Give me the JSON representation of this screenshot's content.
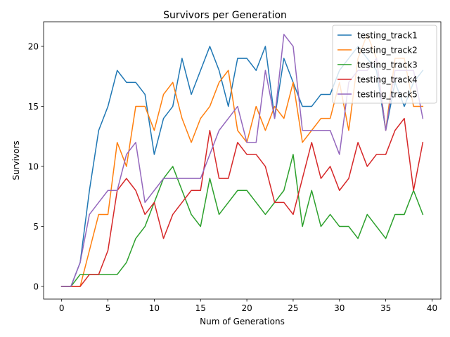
{
  "chart_data": {
    "type": "line",
    "title": "Survivors per Generation",
    "xlabel": "Num of Generations",
    "ylabel": "Survivors",
    "xlim": [
      -1.95,
      40.95
    ],
    "ylim": [
      -1.05,
      22.05
    ],
    "xticks": [
      0,
      5,
      10,
      15,
      20,
      25,
      30,
      35,
      40
    ],
    "yticks": [
      0,
      5,
      10,
      15,
      20
    ],
    "grid": false,
    "legend_position": "top-right",
    "x": [
      0,
      1,
      2,
      3,
      4,
      5,
      6,
      7,
      8,
      9,
      10,
      11,
      12,
      13,
      14,
      15,
      16,
      17,
      18,
      19,
      20,
      21,
      22,
      23,
      24,
      25,
      26,
      27,
      28,
      29,
      30,
      31,
      32,
      33,
      34,
      35,
      36,
      37,
      38,
      39
    ],
    "series": [
      {
        "name": "testing_track1",
        "color": "#1f77b4",
        "values": [
          0,
          0,
          2,
          8,
          13,
          15,
          18,
          17,
          17,
          16,
          11,
          14,
          15,
          19,
          16,
          18,
          20,
          18,
          15,
          19,
          19,
          18,
          20,
          14,
          19,
          17,
          15,
          15,
          16,
          16,
          18,
          19,
          20,
          19,
          18,
          13,
          17,
          15,
          17,
          18
        ]
      },
      {
        "name": "testing_track2",
        "color": "#ff7f0e",
        "values": [
          0,
          0,
          0,
          3,
          6,
          6,
          12,
          10,
          15,
          15,
          13,
          16,
          17,
          14,
          12,
          14,
          15,
          17,
          18,
          13,
          12,
          15,
          13,
          15,
          14,
          17,
          12,
          13,
          14,
          14,
          17,
          13,
          19,
          21,
          19,
          13,
          19,
          19,
          15,
          15
        ]
      },
      {
        "name": "testing_track3",
        "color": "#2ca02c",
        "values": [
          0,
          0,
          1,
          1,
          1,
          1,
          1,
          2,
          4,
          5,
          7,
          9,
          10,
          8,
          6,
          5,
          9,
          6,
          7,
          8,
          8,
          7,
          6,
          7,
          8,
          11,
          5,
          8,
          5,
          6,
          5,
          5,
          4,
          6,
          5,
          4,
          6,
          6,
          8,
          6
        ]
      },
      {
        "name": "testing_track4",
        "color": "#d62728",
        "values": [
          0,
          0,
          0,
          1,
          1,
          3,
          8,
          9,
          8,
          6,
          7,
          4,
          6,
          7,
          8,
          8,
          13,
          9,
          9,
          12,
          11,
          11,
          10,
          7,
          7,
          6,
          9,
          12,
          9,
          10,
          8,
          9,
          12,
          10,
          11,
          11,
          13,
          14,
          8,
          12
        ]
      },
      {
        "name": "testing_track5",
        "color": "#9467bd",
        "values": [
          0,
          0,
          2,
          6,
          7,
          8,
          8,
          11,
          12,
          7,
          8,
          9,
          9,
          9,
          9,
          9,
          11,
          13,
          14,
          15,
          12,
          12,
          18,
          14,
          21,
          20,
          13,
          13,
          13,
          13,
          11,
          17,
          18,
          18,
          19,
          13,
          18,
          18,
          18,
          14
        ]
      }
    ]
  }
}
